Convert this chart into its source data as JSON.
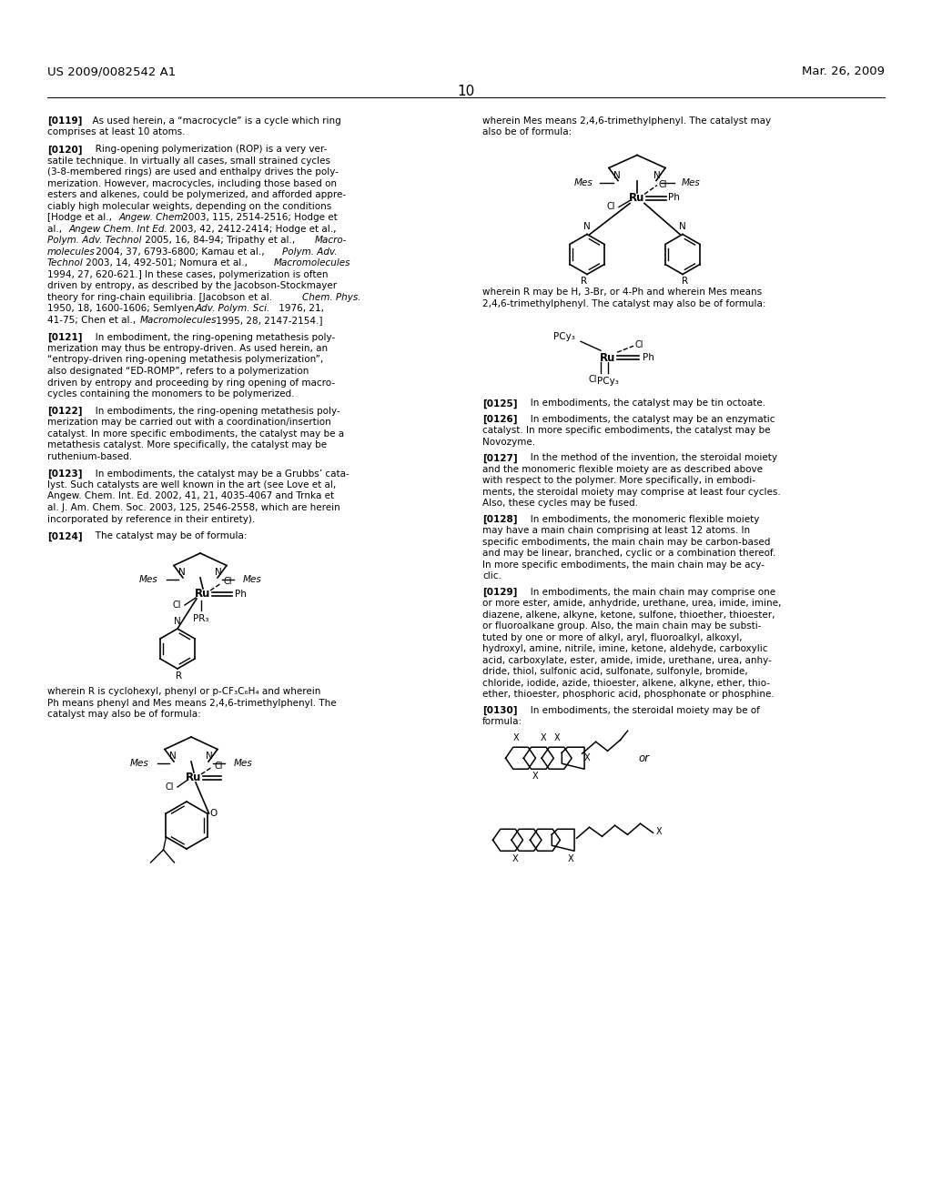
{
  "background_color": "#ffffff",
  "header_left": "US 2009/0082542 A1",
  "header_right": "Mar. 26, 2009",
  "page_number": "10"
}
